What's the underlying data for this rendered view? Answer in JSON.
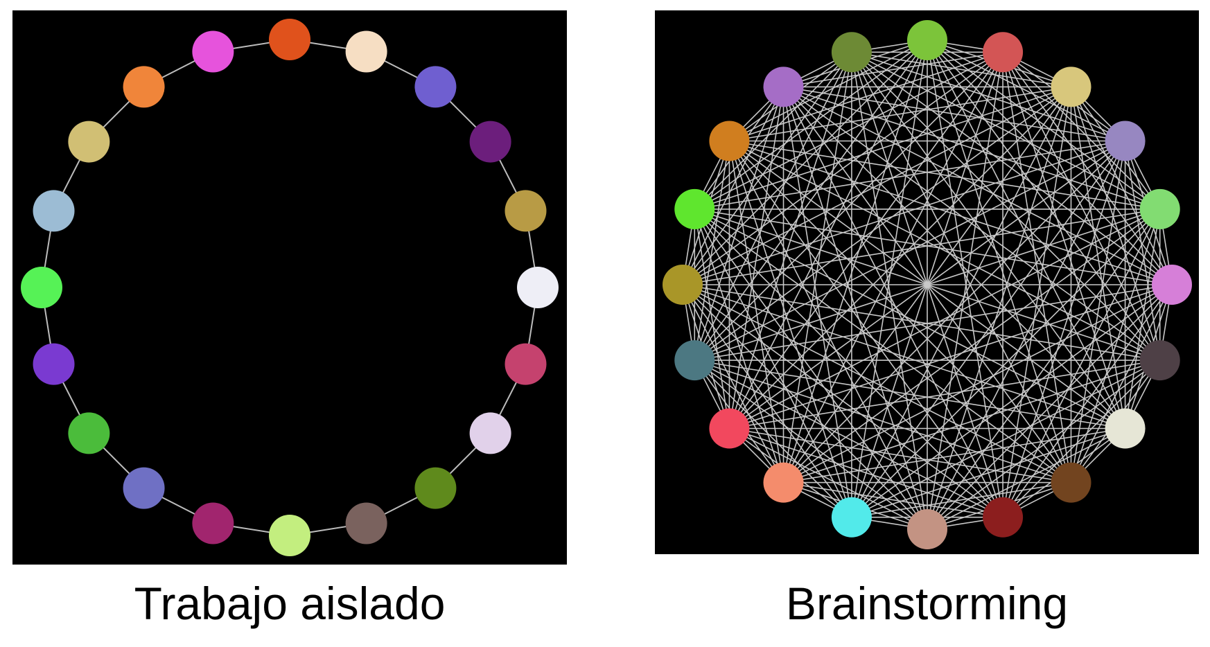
{
  "diagrams": [
    {
      "caption": "Trabajo aislado",
      "topology": "ring",
      "edge_color": "#bdbdbd",
      "node_colors": [
        "#e0521c",
        "#f6dec3",
        "#6f5fd0",
        "#6c1e7c",
        "#b89b45",
        "#eeeef6",
        "#c5426e",
        "#e1d1ea",
        "#5f8a1c",
        "#7a625e",
        "#c3ee7f",
        "#a1256e",
        "#6f70c4",
        "#4bbc3b",
        "#7a3ad1",
        "#56f256",
        "#9cbcd4",
        "#d1bf74",
        "#f0853a",
        "#e653dc"
      ]
    },
    {
      "caption": "Brainstorming",
      "topology": "complete",
      "edge_color": "#c8c8c8",
      "node_colors": [
        "#7cc43a",
        "#d35555",
        "#d8c77c",
        "#9787c1",
        "#82dc72",
        "#d67fd8",
        "#4e4046",
        "#e6e6d6",
        "#72441f",
        "#8c1e1e",
        "#c39383",
        "#52eaea",
        "#f48c6c",
        "#f2485e",
        "#4c7882",
        "#a99628",
        "#5fe62e",
        "#d07e1f",
        "#a56dc6",
        "#6d8a35"
      ]
    }
  ]
}
